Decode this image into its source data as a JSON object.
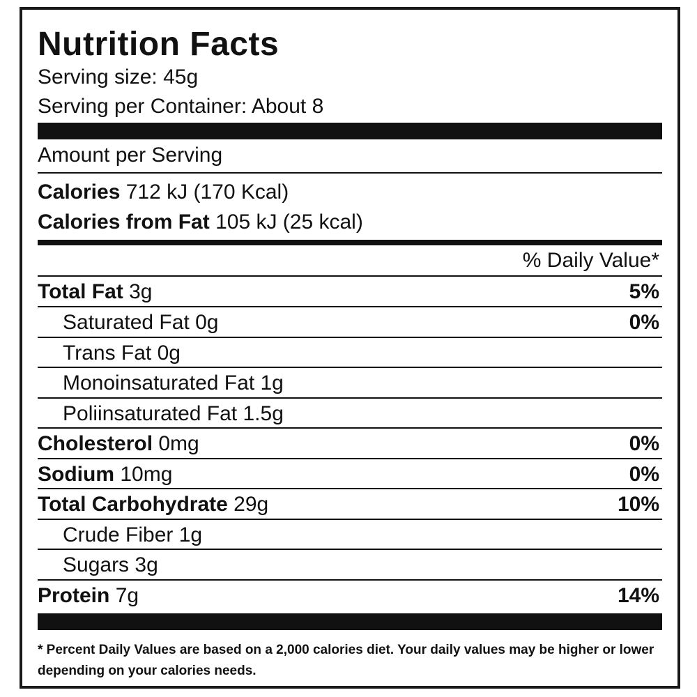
{
  "title": "Nutrition Facts",
  "serving_size": "Serving size: 45g",
  "servings_per_container": "Serving per Container: About 8",
  "amount_per_serving": "Amount per Serving",
  "calories": {
    "label": "Calories",
    "value": "712 kJ (170 Kcal)"
  },
  "calories_from_fat": {
    "label": "Calories from Fat",
    "value": "105 kJ (25 kcal)"
  },
  "daily_value_header": "% Daily Value*",
  "nutrients": [
    {
      "label": "Total Fat",
      "amount": "3g",
      "dv": "5%"
    },
    {
      "label": "Saturated Fat",
      "amount": "0g",
      "dv": "0%"
    },
    {
      "label": "Trans Fat",
      "amount": "0g",
      "dv": ""
    },
    {
      "label": "Monoinsaturated Fat",
      "amount": "1g",
      "dv": ""
    },
    {
      "label": "Poliinsaturated Fat",
      "amount": "1.5g",
      "dv": ""
    },
    {
      "label": "Cholesterol",
      "amount": "0mg",
      "dv": "0%"
    },
    {
      "label": "Sodium",
      "amount": "10mg",
      "dv": "0%"
    },
    {
      "label": "Total Carbohydrate",
      "amount": "29g",
      "dv": "10%"
    },
    {
      "label": "Crude Fiber",
      "amount": "1g",
      "dv": ""
    },
    {
      "label": "Sugars",
      "amount": "3g",
      "dv": ""
    },
    {
      "label": "Protein",
      "amount": "7g",
      "dv": "14%"
    }
  ],
  "footnote": "* Percent Daily Values are based on a 2,000 calories diet. Your daily values may be higher or lower depending on your calories needs."
}
